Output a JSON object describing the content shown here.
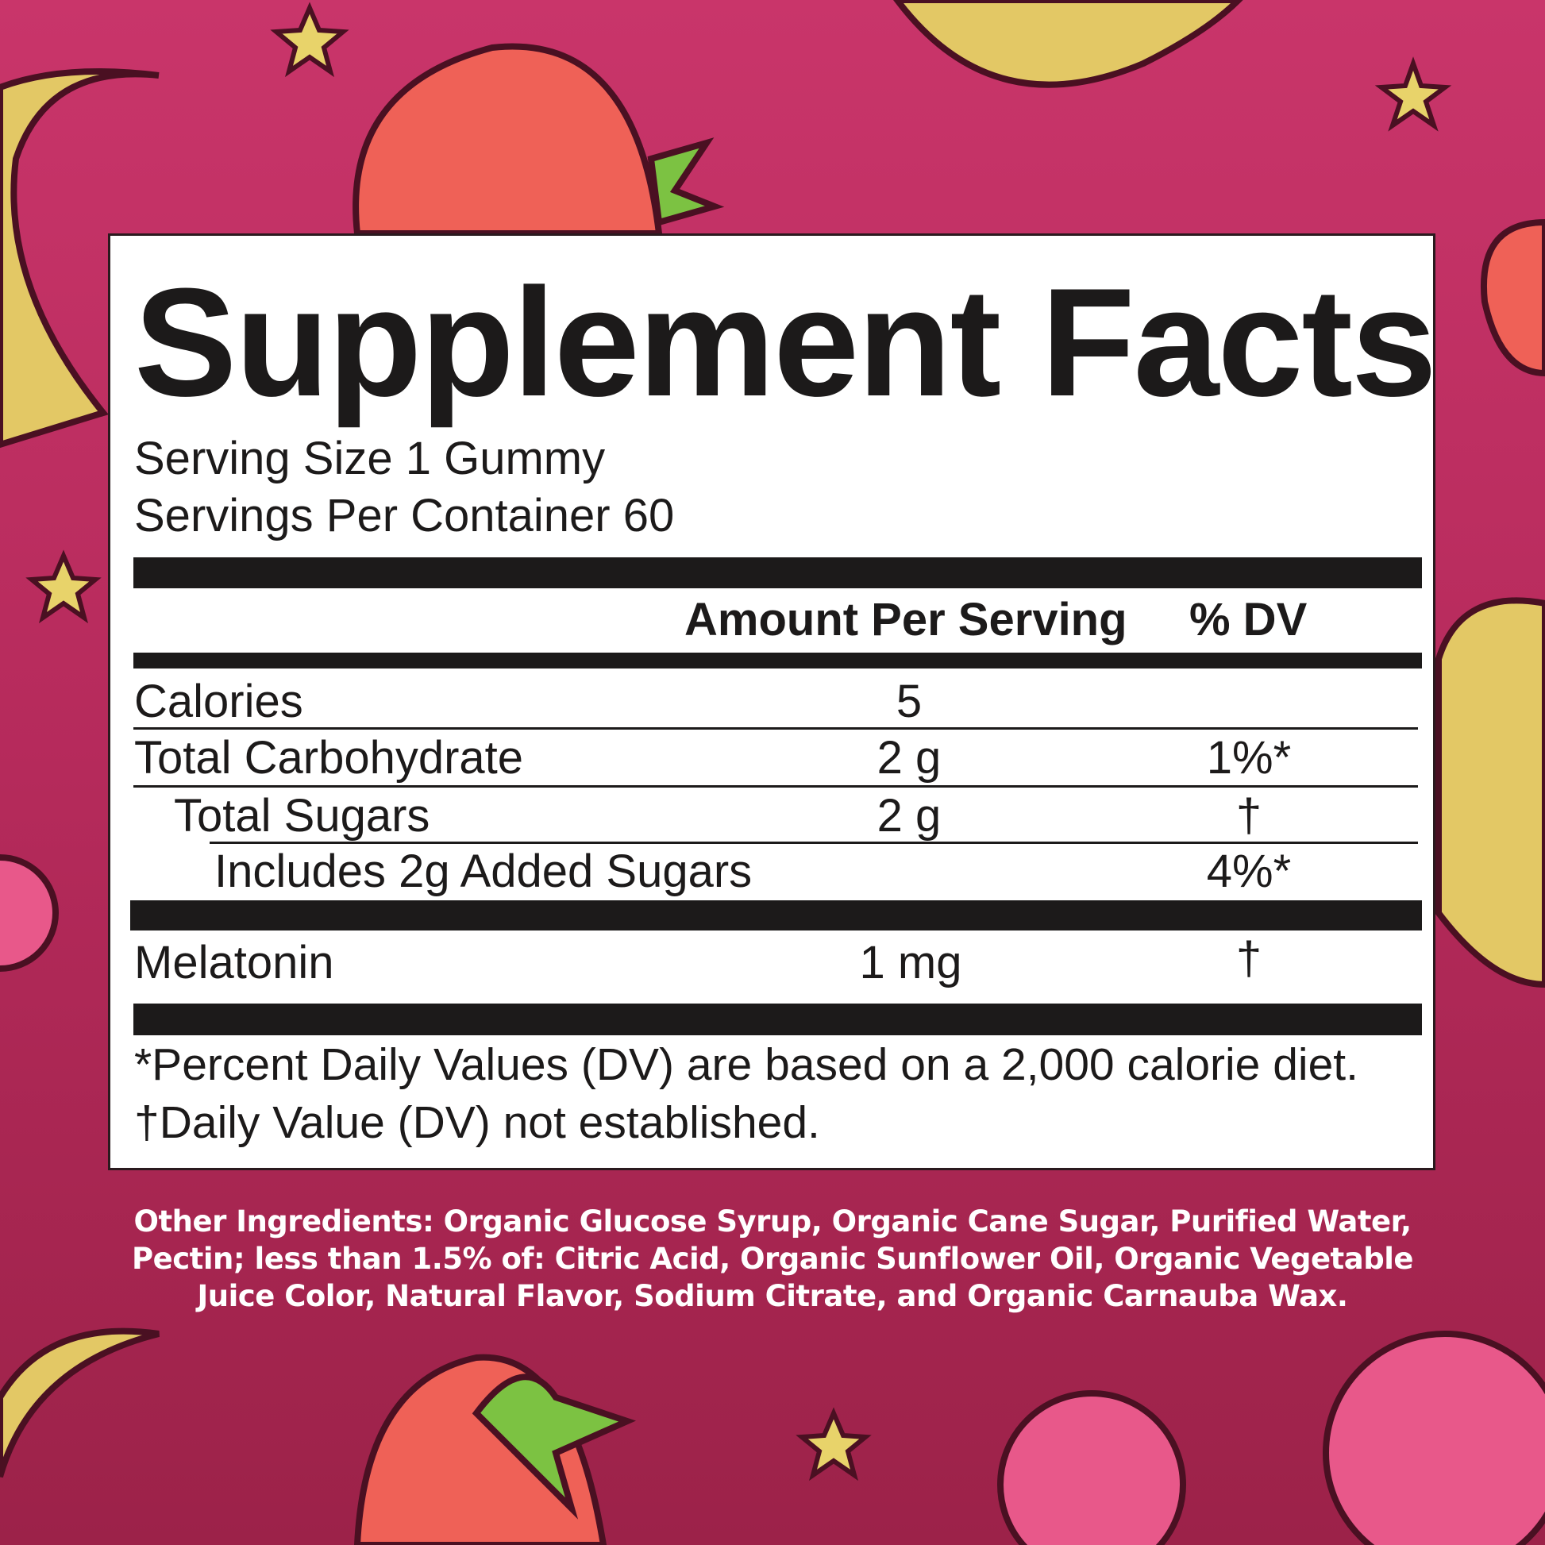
{
  "title": "Supplement Facts",
  "serving_size": "Serving Size 1 Gummy",
  "servings_per_container": "Servings Per Container 60",
  "header": {
    "amount": "Amount Per Serving",
    "dv": "% DV"
  },
  "rows": [
    {
      "name": "Calories",
      "amount": "5",
      "dv": ""
    },
    {
      "name": "Total Carbohydrate",
      "amount": "2 g",
      "dv": "1%*"
    },
    {
      "name": "Total Sugars",
      "amount": "2 g",
      "dv": "†"
    },
    {
      "name": "Includes 2g Added Sugars",
      "amount": "",
      "dv": "4%*"
    },
    {
      "name": "Melatonin",
      "amount": "1 mg",
      "dv": "†"
    }
  ],
  "footnotes": [
    "*Percent Daily Values (DV) are based on a 2,000 calorie diet.",
    "†Daily Value (DV) not established."
  ],
  "other_ingredients": [
    "Other Ingredients: Organic Glucose Syrup, Organic Cane Sugar, Purified Water,",
    "Pectin; less than 1.5% of: Citric Acid, Organic Sunflower Oil, Organic Vegetable",
    "Juice Color, Natural Flavor, Sodium Citrate, and Organic Carnauba Wax."
  ],
  "colors": {
    "background_top": "#c9356a",
    "background_bottom": "#9c2249",
    "moon": "#e3c865",
    "star": "#e8d36a",
    "strawberry": "#ef6157",
    "raspberry": "#e8588a",
    "leaf": "#7cc242"
  }
}
